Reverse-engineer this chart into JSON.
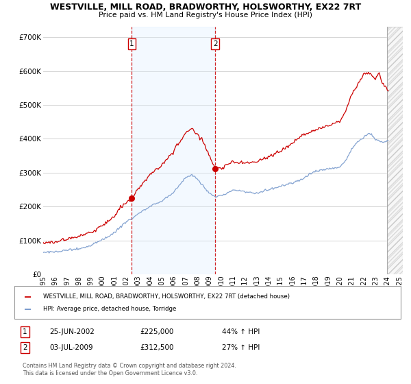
{
  "title": "WESTVILLE, MILL ROAD, BRADWORTHY, HOLSWORTHY, EX22 7RT",
  "subtitle": "Price paid vs. HM Land Registry's House Price Index (HPI)",
  "legend_line1": "WESTVILLE, MILL ROAD, BRADWORTHY, HOLSWORTHY, EX22 7RT (detached house)",
  "legend_line2": "HPI: Average price, detached house, Torridge",
  "purchase1_date": "25-JUN-2002",
  "purchase1_price": "£225,000",
  "purchase1_hpi": "44% ↑ HPI",
  "purchase2_date": "03-JUL-2009",
  "purchase2_price": "£312,500",
  "purchase2_hpi": "27% ↑ HPI",
  "footnote": "Contains HM Land Registry data © Crown copyright and database right 2024.\nThis data is licensed under the Open Government Licence v3.0.",
  "red_color": "#cc0000",
  "blue_color": "#7799cc",
  "vline_color": "#cc0000",
  "shading_color": "#ddeeff",
  "background_color": "#ffffff",
  "grid_color": "#cccccc",
  "ylim": [
    0,
    730000
  ],
  "yticks": [
    0,
    100000,
    200000,
    300000,
    400000,
    500000,
    600000,
    700000
  ],
  "ytick_labels": [
    "£0",
    "£100K",
    "£200K",
    "£300K",
    "£400K",
    "£500K",
    "£600K",
    "£700K"
  ],
  "vline1_x": 2002.47,
  "vline2_x": 2009.5,
  "hatch_start_x": 2024.0,
  "xlim_left": 1995.0,
  "xlim_right": 2025.3
}
